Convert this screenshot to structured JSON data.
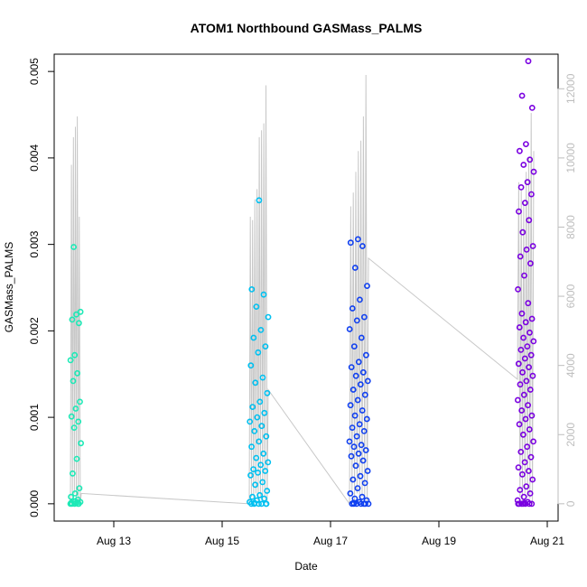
{
  "chart_data": {
    "type": "scatter",
    "title": "ATOM1 Northbound GASMass_PALMS",
    "xlabel": "Date",
    "ylabel": "GASMass_PALMS",
    "x_ticks": [
      {
        "value": 13,
        "label": "Aug 13"
      },
      {
        "value": 15,
        "label": "Aug 15"
      },
      {
        "value": 17,
        "label": "Aug 17"
      },
      {
        "value": 19,
        "label": "Aug 19"
      },
      {
        "value": 21,
        "label": "Aug 21"
      }
    ],
    "y_ticks": [
      0.0,
      0.001,
      0.002,
      0.003,
      0.004,
      0.005
    ],
    "y_tick_labels": [
      "0.000",
      "0.001",
      "0.002",
      "0.003",
      "0.004",
      "0.005"
    ],
    "y2_ticks": [
      0,
      2000,
      4000,
      6000,
      8000,
      10000,
      12000
    ],
    "y2_tick_labels": [
      "0",
      "2000",
      "4000",
      "6000",
      "8000",
      "10000",
      "12000"
    ],
    "xlim": [
      11.9,
      21.2
    ],
    "ylim": [
      -0.0002,
      0.0052
    ],
    "y2lim": [
      -500,
      13000
    ],
    "grid": false,
    "series": [
      {
        "color": "#1de9b6",
        "x_range": [
          12.2,
          12.4
        ],
        "values": [
          0.0,
          0.0,
          0.0,
          0.0,
          1e-05,
          2e-05,
          3e-05,
          5e-05,
          8e-05,
          0.00012,
          0.00018,
          0.00035,
          0.00052,
          0.0007,
          0.00088,
          0.00095,
          0.00101,
          0.0011,
          0.00118,
          0.00142,
          0.00151,
          0.00166,
          0.00172,
          0.00209,
          0.00213,
          0.00219,
          0.00222,
          0.00297,
          0.0,
          1e-05,
          3e-05
        ]
      },
      {
        "color": "#00c0f0",
        "x_range": [
          15.5,
          15.85
        ],
        "values": [
          0.0,
          0.0,
          0.0,
          0.0,
          0.0,
          2e-05,
          4e-05,
          6e-05,
          8e-05,
          0.0001,
          0.00015,
          0.00022,
          0.00025,
          0.00033,
          0.00036,
          0.00038,
          0.0004,
          0.00045,
          0.00048,
          0.00053,
          0.00058,
          0.00066,
          0.00072,
          0.00078,
          0.00084,
          0.0009,
          0.00095,
          0.001,
          0.00105,
          0.00112,
          0.00118,
          0.00128,
          0.0014,
          0.00146,
          0.0016,
          0.00175,
          0.00182,
          0.00192,
          0.00201,
          0.00216,
          0.00228,
          0.00242,
          0.00248,
          0.00351,
          0.0,
          1e-05
        ]
      },
      {
        "color": "#1040f0",
        "x_range": [
          17.35,
          17.7
        ],
        "values": [
          0.0,
          0.0,
          0.0,
          0.0,
          0.0,
          0.0,
          2e-05,
          4e-05,
          6e-05,
          8e-05,
          0.00012,
          0.00018,
          0.00024,
          0.00028,
          0.00032,
          0.00038,
          0.00044,
          0.0005,
          0.00055,
          0.00058,
          0.00062,
          0.00066,
          0.00068,
          0.00072,
          0.00078,
          0.00084,
          0.00088,
          0.00092,
          0.00098,
          0.00102,
          0.00108,
          0.00114,
          0.0012,
          0.00126,
          0.00132,
          0.00138,
          0.00142,
          0.00148,
          0.00152,
          0.00158,
          0.00164,
          0.00172,
          0.00182,
          0.00192,
          0.00202,
          0.00212,
          0.00216,
          0.00226,
          0.00236,
          0.00252,
          0.00273,
          0.00298,
          0.00302,
          0.00306,
          0.0,
          1e-05
        ]
      },
      {
        "color": "#7a00e0",
        "x_range": [
          20.45,
          20.75
        ],
        "values": [
          0.0,
          0.0,
          0.0,
          0.0,
          0.0,
          0.0,
          2e-05,
          4e-05,
          8e-05,
          0.00012,
          0.00016,
          0.0002,
          0.00028,
          0.00034,
          0.00038,
          0.00042,
          0.00048,
          0.00054,
          0.0006,
          0.00066,
          0.00072,
          0.0008,
          0.00086,
          0.00092,
          0.00098,
          0.00102,
          0.00108,
          0.00114,
          0.0012,
          0.00126,
          0.00132,
          0.00138,
          0.00142,
          0.00148,
          0.00152,
          0.00158,
          0.00162,
          0.00168,
          0.00172,
          0.00178,
          0.00182,
          0.00188,
          0.00192,
          0.00198,
          0.00204,
          0.0021,
          0.00214,
          0.0022,
          0.00232,
          0.00248,
          0.00264,
          0.00278,
          0.00286,
          0.00294,
          0.00298,
          0.00314,
          0.00328,
          0.00338,
          0.00348,
          0.00358,
          0.00366,
          0.00372,
          0.00384,
          0.00392,
          0.00398,
          0.00408,
          0.00416,
          0.00458,
          0.00472,
          0.00512,
          0.0,
          1e-05
        ]
      }
    ],
    "secondary_line": {
      "color": "#c8c8c8",
      "axis": "y2",
      "groups": [
        {
          "x_range": [
            12.2,
            12.4
          ],
          "values": [
            0,
            9800,
            200,
            10600,
            300,
            10900,
            150,
            11200,
            100,
            8300,
            0,
            300
          ]
        },
        {
          "x_range": [
            15.5,
            15.85
          ],
          "values": [
            0,
            8300,
            200,
            8200,
            150,
            8800,
            300,
            9100,
            100,
            10600,
            200,
            10800,
            100,
            11000,
            150,
            12100,
            0,
            3300
          ]
        },
        {
          "x_range": [
            17.35,
            17.7
          ],
          "values": [
            0,
            8600,
            200,
            9000,
            100,
            9600,
            300,
            10200,
            150,
            10500,
            200,
            11200,
            100,
            12400,
            0,
            7100
          ]
        },
        {
          "x_range": [
            20.45,
            20.75
          ],
          "values": [
            3600,
            9300,
            200,
            9100,
            100,
            8700,
            300,
            9600,
            200,
            10000,
            150,
            11300,
            0,
            10200
          ]
        }
      ]
    }
  }
}
